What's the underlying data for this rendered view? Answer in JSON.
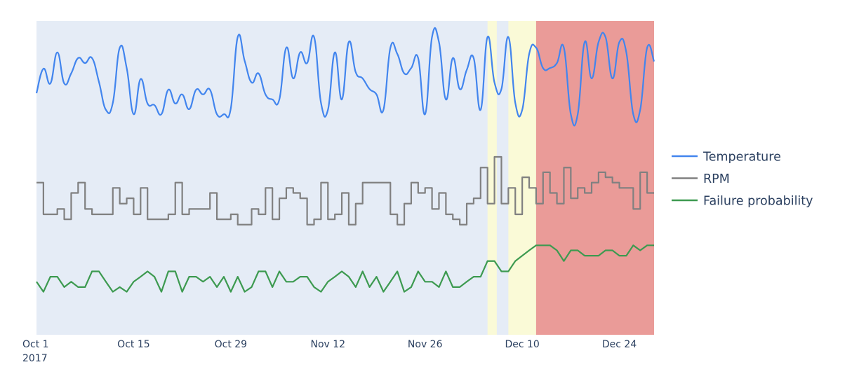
{
  "chart_data": {
    "type": "line",
    "title": "",
    "xlabel": "",
    "ylabel": "",
    "x_start": "2017-10-01",
    "x_frequency": "daily",
    "xlim": [
      "2017-10-01",
      "2017-12-29"
    ],
    "ylim": [
      0,
      100
    ],
    "y_axis_visible": false,
    "grid": false,
    "plot_background": "#e5ecf6",
    "x_ticks": [
      {
        "date": "2017-10-01",
        "label": "Oct 1",
        "sublabel": "2017"
      },
      {
        "date": "2017-10-15",
        "label": "Oct 15"
      },
      {
        "date": "2017-10-29",
        "label": "Oct 29"
      },
      {
        "date": "2017-11-12",
        "label": "Nov 12"
      },
      {
        "date": "2017-11-26",
        "label": "Nov 26"
      },
      {
        "date": "2017-12-10",
        "label": "Dec 10"
      },
      {
        "date": "2017-12-24",
        "label": "Dec 24"
      }
    ],
    "legend_position": "right",
    "shaded_regions": [
      {
        "start": "2017-12-05T00:00",
        "end": "2017-12-06T08:00",
        "color": "#fafad7"
      },
      {
        "start": "2017-12-08T00:00",
        "end": "2017-12-12T00:00",
        "color": "#fafad7"
      },
      {
        "start": "2017-12-12T00:00",
        "end": "2017-12-29T00:00",
        "color": "#ea9b98"
      }
    ],
    "series": [
      {
        "name": "Temperature",
        "color": "#4285ee",
        "shape": "spline",
        "values": [
          77.0,
          84.8,
          80.1,
          90.0,
          80.1,
          83.3,
          88.2,
          86.6,
          88.2,
          80.6,
          71.7,
          73.9,
          91.5,
          85.0,
          70.3,
          81.5,
          73.7,
          73.2,
          70.3,
          78.1,
          73.7,
          76.6,
          71.9,
          78.1,
          76.6,
          78.1,
          70.3,
          70.3,
          72.1,
          94.9,
          87.3,
          80.4,
          83.3,
          76.6,
          75.0,
          75.0,
          91.5,
          81.7,
          90.0,
          86.6,
          94.9,
          73.9,
          71.7,
          90.0,
          75.0,
          93.3,
          83.7,
          81.7,
          78.3,
          76.6,
          71.7,
          91.5,
          89.5,
          83.3,
          85.0,
          88.2,
          70.3,
          94.9,
          93.3,
          75.0,
          88.2,
          78.3,
          84.4,
          88.2,
          71.7,
          94.9,
          80.4,
          78.3,
          94.9,
          73.9,
          71.7,
          89.5,
          91.5,
          85.0,
          85.0,
          86.6,
          91.5,
          70.3,
          70.3,
          93.3,
          81.7,
          93.3,
          94.9,
          81.7,
          93.3,
          90.0,
          70.3,
          71.7,
          91.5,
          87.1
        ]
      },
      {
        "name": "RPM",
        "color": "#808080",
        "shape": "hv",
        "values": [
          48.5,
          38.4,
          38.4,
          40.1,
          36.8,
          45.2,
          48.5,
          40.1,
          38.4,
          38.4,
          38.4,
          46.8,
          41.8,
          43.5,
          38.4,
          46.8,
          36.8,
          36.8,
          36.8,
          38.4,
          48.5,
          38.4,
          40.1,
          40.1,
          40.1,
          45.2,
          36.8,
          36.8,
          38.4,
          35.1,
          35.1,
          40.1,
          38.4,
          46.8,
          36.8,
          43.5,
          46.8,
          45.2,
          43.5,
          35.1,
          36.8,
          48.5,
          36.8,
          38.4,
          45.2,
          35.1,
          41.8,
          48.5,
          48.5,
          48.5,
          48.5,
          38.4,
          35.1,
          41.8,
          48.5,
          45.2,
          46.8,
          40.1,
          45.2,
          38.4,
          36.8,
          35.1,
          41.8,
          43.5,
          53.3,
          41.8,
          56.7,
          41.8,
          46.8,
          38.4,
          50.2,
          46.8,
          41.8,
          51.8,
          45.2,
          41.8,
          53.3,
          43.5,
          46.8,
          45.2,
          48.5,
          51.8,
          50.2,
          48.5,
          46.8,
          46.8,
          40.1,
          51.8,
          45.2,
          45.2
        ]
      },
      {
        "name": "Failure probability",
        "color": "#3d9a50",
        "shape": "linear",
        "values": [
          16.9,
          13.7,
          18.5,
          18.5,
          15.2,
          16.9,
          15.2,
          15.2,
          20.2,
          20.2,
          16.9,
          13.7,
          15.2,
          13.7,
          16.9,
          18.5,
          20.2,
          18.5,
          13.7,
          20.2,
          20.2,
          13.7,
          18.5,
          18.5,
          16.9,
          18.5,
          15.2,
          18.5,
          13.7,
          18.5,
          13.7,
          15.2,
          20.2,
          20.2,
          15.2,
          20.2,
          16.9,
          16.9,
          18.5,
          18.5,
          15.2,
          13.7,
          16.9,
          18.5,
          20.2,
          18.5,
          15.2,
          20.2,
          15.2,
          18.5,
          13.7,
          16.9,
          20.2,
          13.7,
          15.2,
          20.2,
          16.9,
          16.9,
          15.2,
          20.2,
          15.2,
          15.2,
          16.9,
          18.5,
          18.5,
          23.5,
          23.5,
          20.2,
          20.2,
          23.5,
          25.2,
          26.9,
          28.5,
          28.5,
          28.5,
          26.9,
          23.5,
          26.9,
          26.9,
          25.2,
          25.2,
          25.2,
          26.9,
          26.9,
          25.2,
          25.2,
          28.5,
          26.9,
          28.5,
          28.5
        ]
      }
    ]
  }
}
